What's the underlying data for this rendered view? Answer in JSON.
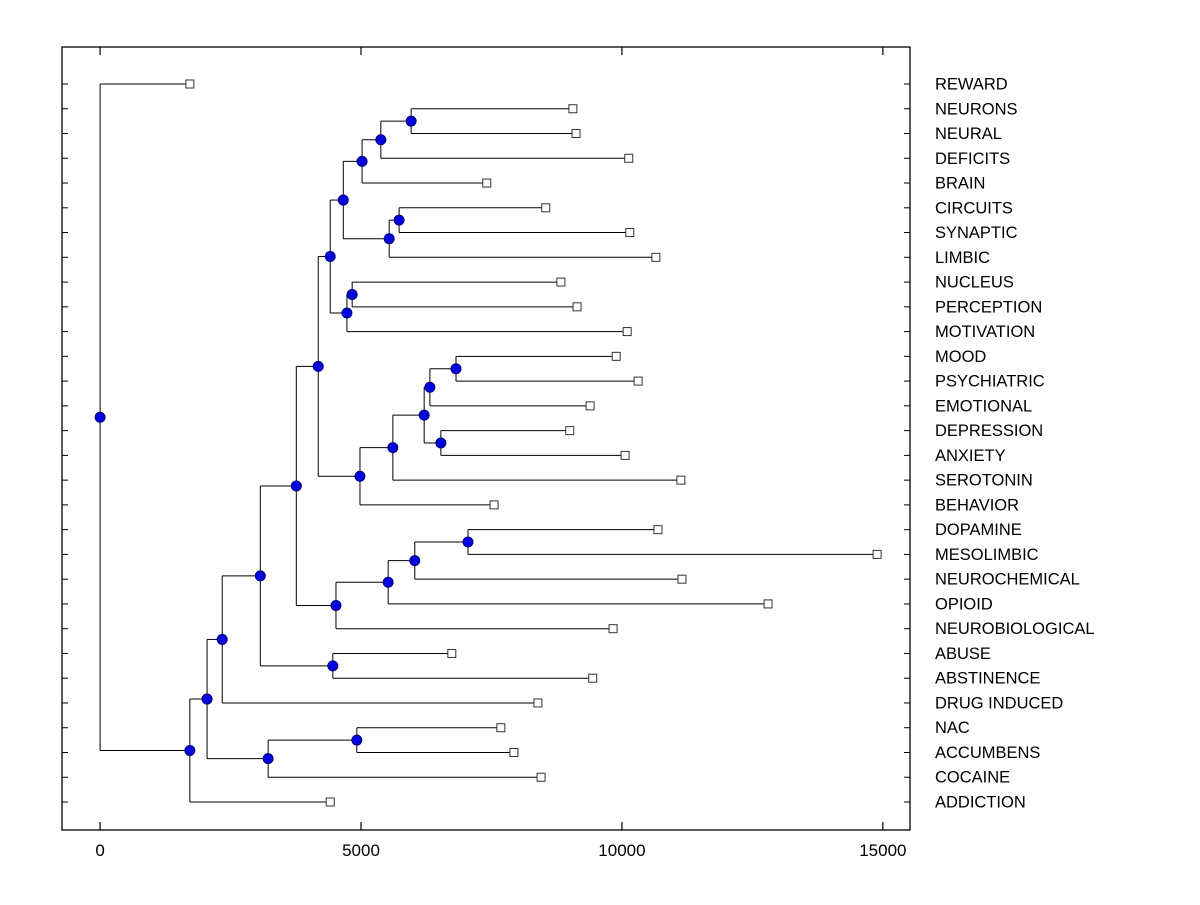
{
  "figure": {
    "background": "#ffffff",
    "line_color": "#000000",
    "axis_color": "#000000",
    "node_marker_fill": "#0000dd",
    "node_marker_stroke": "#000080",
    "leaf_marker_fill": "#ffffff",
    "leaf_marker_stroke": "#333333"
  },
  "chart_data": {
    "type": "dendrogram",
    "orientation": "root-left-leaves-right",
    "title": "",
    "xlabel": "",
    "ylabel": "",
    "grid": false,
    "legend": false,
    "xlim": [
      -730,
      15520
    ],
    "x_ticks": [
      0,
      5000,
      10000,
      15000
    ],
    "x_tick_labels": [
      "0",
      "5000",
      "10000",
      "15000"
    ],
    "markers": {
      "internal_node": "filled-circle",
      "leaf": "open-square"
    },
    "leaves_top_to_bottom": [
      {
        "label": "REWARD",
        "value": 1720
      },
      {
        "label": "NEURONS",
        "value": 9060
      },
      {
        "label": "NEURAL",
        "value": 9120
      },
      {
        "label": "DEFICITS",
        "value": 10130
      },
      {
        "label": "BRAIN",
        "value": 7410
      },
      {
        "label": "CIRCUITS",
        "value": 8540
      },
      {
        "label": "SYNAPTIC",
        "value": 10150
      },
      {
        "label": "LIMBIC",
        "value": 10650
      },
      {
        "label": "NUCLEUS",
        "value": 8830
      },
      {
        "label": "PERCEPTION",
        "value": 9140
      },
      {
        "label": "MOTIVATION",
        "value": 10100
      },
      {
        "label": "MOOD",
        "value": 9890
      },
      {
        "label": "PSYCHIATRIC",
        "value": 10310
      },
      {
        "label": "EMOTIONAL",
        "value": 9390
      },
      {
        "label": "DEPRESSION",
        "value": 9000
      },
      {
        "label": "ANXIETY",
        "value": 10060
      },
      {
        "label": "SEROTONIN",
        "value": 11130
      },
      {
        "label": "BEHAVIOR",
        "value": 7550
      },
      {
        "label": "DOPAMINE",
        "value": 10690
      },
      {
        "label": "MESOLIMBIC",
        "value": 14890
      },
      {
        "label": "NEUROCHEMICAL",
        "value": 11150
      },
      {
        "label": "OPIOID",
        "value": 12800
      },
      {
        "label": "NEUROBIOLOGICAL",
        "value": 9830
      },
      {
        "label": "ABUSE",
        "value": 6740
      },
      {
        "label": "ABSTINENCE",
        "value": 9440
      },
      {
        "label": "DRUG INDUCED",
        "value": 8390
      },
      {
        "label": "NAC",
        "value": 7680
      },
      {
        "label": "ACCUMBENS",
        "value": 7930
      },
      {
        "label": "COCAINE",
        "value": 8450
      },
      {
        "label": "ADDICTION",
        "value": 4410
      }
    ],
    "tree": {
      "value": 0,
      "children": [
        {
          "label": "REWARD",
          "value": 1720
        },
        {
          "value": 1720,
          "children": [
            {
              "value": 2050,
              "children": [
                {
                  "value": 2340,
                  "children": [
                    {
                      "value": 3070,
                      "children": [
                        {
                          "value": 3760,
                          "children": [
                            {
                              "value": 4180,
                              "children": [
                                {
                                  "value": 4410,
                                  "children": [
                                    {
                                      "value": 4660,
                                      "children": [
                                        {
                                          "value": 5020,
                                          "children": [
                                            {
                                              "value": 5380,
                                              "children": [
                                                {
                                                  "value": 5960,
                                                  "children": [
                                                    {
                                                      "label": "NEURONS",
                                                      "value": 9060
                                                    },
                                                    {
                                                      "label": "NEURAL",
                                                      "value": 9120
                                                    }
                                                  ]
                                                },
                                                {
                                                  "label": "DEFICITS",
                                                  "value": 10130
                                                }
                                              ]
                                            },
                                            {
                                              "label": "BRAIN",
                                              "value": 7410
                                            }
                                          ]
                                        },
                                        {
                                          "value": 5540,
                                          "children": [
                                            {
                                              "value": 5730,
                                              "children": [
                                                {
                                                  "label": "CIRCUITS",
                                                  "value": 8540
                                                },
                                                {
                                                  "label": "SYNAPTIC",
                                                  "value": 10150
                                                }
                                              ]
                                            },
                                            {
                                              "label": "LIMBIC",
                                              "value": 10650
                                            }
                                          ]
                                        }
                                      ]
                                    },
                                    {
                                      "value": 4730,
                                      "children": [
                                        {
                                          "value": 4830,
                                          "children": [
                                            {
                                              "label": "NUCLEUS",
                                              "value": 8830
                                            },
                                            {
                                              "label": "PERCEPTION",
                                              "value": 9140
                                            }
                                          ]
                                        },
                                        {
                                          "label": "MOTIVATION",
                                          "value": 10100
                                        }
                                      ]
                                    }
                                  ]
                                },
                                {
                                  "value": 4980,
                                  "children": [
                                    {
                                      "value": 5610,
                                      "children": [
                                        {
                                          "value": 6210,
                                          "children": [
                                            {
                                              "value": 6320,
                                              "children": [
                                                {
                                                  "value": 6820,
                                                  "children": [
                                                    {
                                                      "label": "MOOD",
                                                      "value": 9890
                                                    },
                                                    {
                                                      "label": "PSYCHIATRIC",
                                                      "value": 10310
                                                    }
                                                  ]
                                                },
                                                {
                                                  "label": "EMOTIONAL",
                                                  "value": 9390
                                                }
                                              ]
                                            },
                                            {
                                              "value": 6530,
                                              "children": [
                                                {
                                                  "label": "DEPRESSION",
                                                  "value": 9000
                                                },
                                                {
                                                  "label": "ANXIETY",
                                                  "value": 10060
                                                }
                                              ]
                                            }
                                          ]
                                        },
                                        {
                                          "label": "SEROTONIN",
                                          "value": 11130
                                        }
                                      ]
                                    },
                                    {
                                      "label": "BEHAVIOR",
                                      "value": 7550
                                    }
                                  ]
                                }
                              ]
                            },
                            {
                              "value": 4520,
                              "children": [
                                {
                                  "value": 5520,
                                  "children": [
                                    {
                                      "value": 6030,
                                      "children": [
                                        {
                                          "value": 7050,
                                          "children": [
                                            {
                                              "label": "DOPAMINE",
                                              "value": 10690
                                            },
                                            {
                                              "label": "MESOLIMBIC",
                                              "value": 14890
                                            }
                                          ]
                                        },
                                        {
                                          "label": "NEUROCHEMICAL",
                                          "value": 11150
                                        }
                                      ]
                                    },
                                    {
                                      "label": "OPIOID",
                                      "value": 12800
                                    }
                                  ]
                                },
                                {
                                  "label": "NEUROBIOLOGICAL",
                                  "value": 9830
                                }
                              ]
                            }
                          ]
                        },
                        {
                          "value": 4460,
                          "children": [
                            {
                              "label": "ABUSE",
                              "value": 6740
                            },
                            {
                              "label": "ABSTINENCE",
                              "value": 9440
                            }
                          ]
                        }
                      ]
                    },
                    {
                      "label": "DRUG INDUCED",
                      "value": 8390
                    }
                  ]
                },
                {
                  "value": 3220,
                  "children": [
                    {
                      "value": 4920,
                      "children": [
                        {
                          "label": "NAC",
                          "value": 7680
                        },
                        {
                          "label": "ACCUMBENS",
                          "value": 7930
                        }
                      ]
                    },
                    {
                      "label": "COCAINE",
                      "value": 8450
                    }
                  ]
                }
              ]
            },
            {
              "label": "ADDICTION",
              "value": 4410
            }
          ]
        }
      ]
    }
  }
}
